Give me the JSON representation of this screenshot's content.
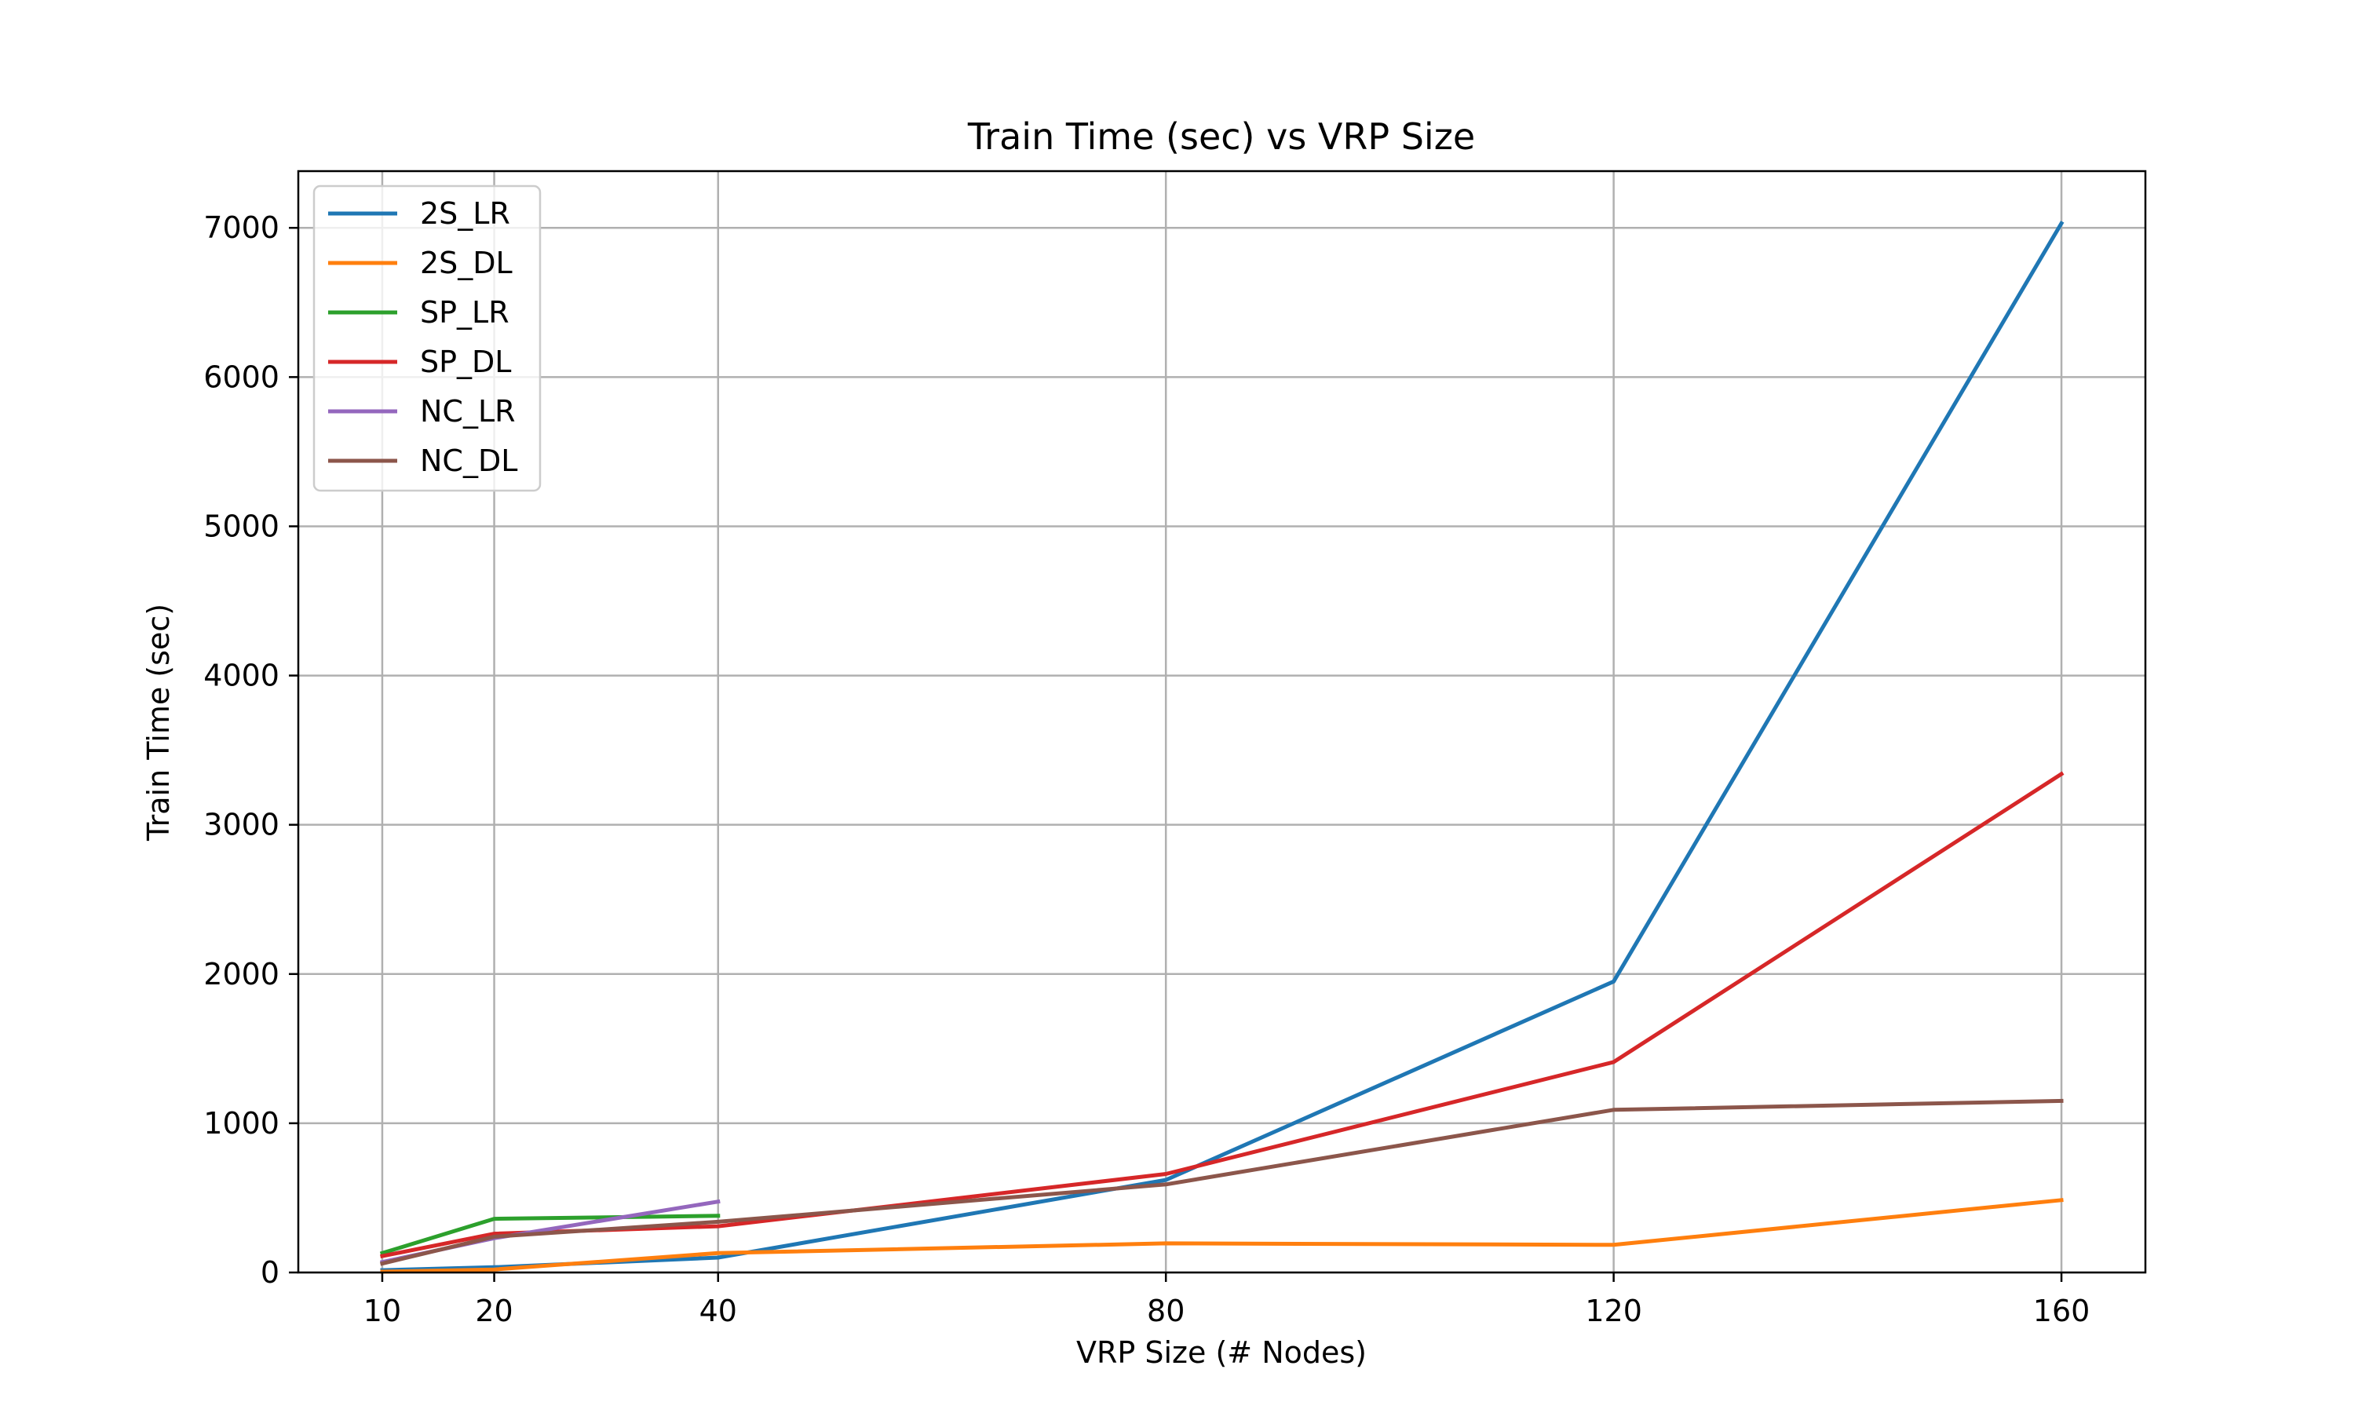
{
  "chart_data": {
    "type": "line",
    "title": "Train Time (sec) vs VRP Size",
    "xlabel": "VRP Size (# Nodes)",
    "ylabel": "Train Time (sec)",
    "x_ticks": [
      10,
      20,
      40,
      80,
      120,
      160
    ],
    "y_ticks": [
      0,
      1000,
      2000,
      3000,
      4000,
      5000,
      6000,
      7000
    ],
    "xlim": [
      2.5,
      167.5
    ],
    "ylim": [
      0,
      7380
    ],
    "grid": true,
    "legend_position": "top-left",
    "series": [
      {
        "name": "2S_LR",
        "color": "#1f77b4",
        "x": [
          10,
          20,
          40,
          80,
          120,
          160
        ],
        "y": [
          15,
          35,
          100,
          620,
          1950,
          7030
        ]
      },
      {
        "name": "2S_DL",
        "color": "#ff7f0e",
        "x": [
          10,
          20,
          40,
          80,
          120,
          160
        ],
        "y": [
          5,
          20,
          130,
          195,
          185,
          485
        ]
      },
      {
        "name": "SP_LR",
        "color": "#2ca02c",
        "x": [
          10,
          20,
          40
        ],
        "y": [
          130,
          360,
          380
        ]
      },
      {
        "name": "SP_DL",
        "color": "#d62728",
        "x": [
          10,
          20,
          40,
          80,
          120,
          160
        ],
        "y": [
          110,
          260,
          310,
          660,
          1410,
          3340
        ]
      },
      {
        "name": "NC_LR",
        "color": "#9467bd",
        "x": [
          10,
          20,
          40
        ],
        "y": [
          70,
          230,
          475
        ]
      },
      {
        "name": "NC_DL",
        "color": "#8c564b",
        "x": [
          10,
          20,
          40,
          80,
          120,
          160
        ],
        "y": [
          60,
          240,
          340,
          590,
          1090,
          1150
        ]
      }
    ]
  }
}
